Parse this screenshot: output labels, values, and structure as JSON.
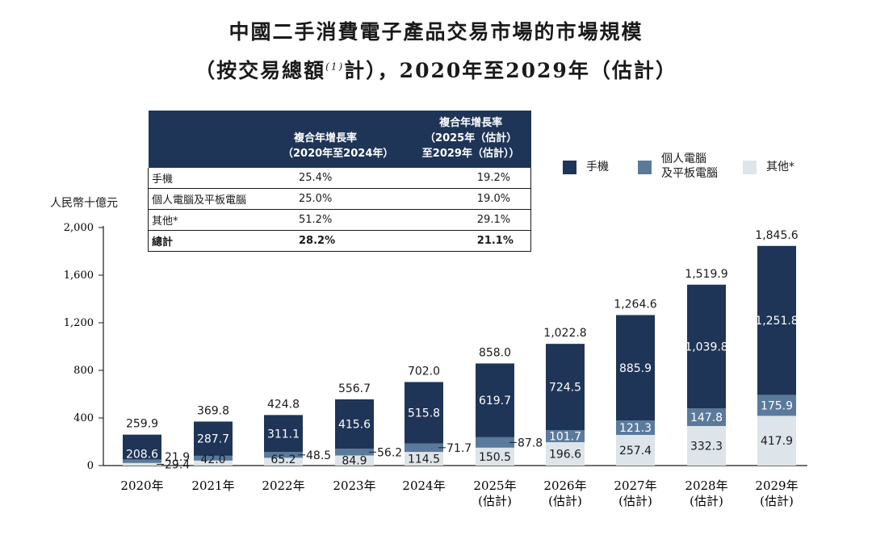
{
  "title_line1": "中國二手消費電子產品交易市場的市場規模",
  "title_line2_a": "（按交易總額",
  "title_line2_sup": "(1)",
  "title_line2_b": "計），2020年至2029年（估計）",
  "table": {
    "header_col1_line1": "複合年增長率",
    "header_col1_line2": "（2020年至2024年）",
    "header_col2_line1": "複合年增長率",
    "header_col2_line2": "（2025年（估計）",
    "header_col2_line3": "至2029年（估計））",
    "rows": [
      {
        "label": "手機",
        "v1": "25.4%",
        "v2": "19.2%"
      },
      {
        "label": "個人電腦及平板電腦",
        "v1": "25.0%",
        "v2": "19.0%"
      },
      {
        "label": "其他*",
        "v1": "51.2%",
        "v2": "29.1%"
      },
      {
        "label": "總計",
        "v1": "28.2%",
        "v2": "21.1%"
      }
    ]
  },
  "legend": {
    "phones": "手機",
    "pc_line1": "個人電腦",
    "pc_line2": "及平板電腦",
    "others": "其他*"
  },
  "colors": {
    "phones": "#1f3557",
    "pc": "#5a7a9c",
    "others": "#dde4ea"
  },
  "chart_data": {
    "type": "bar",
    "stacked": true,
    "ylabel": "人民幣十億元",
    "ylim": [
      0,
      2000
    ],
    "yticks": [
      "0",
      "400",
      "800",
      "1,200",
      "1,600",
      "2,000"
    ],
    "categories": [
      {
        "line1": "2020年",
        "line2": ""
      },
      {
        "line1": "2021年",
        "line2": ""
      },
      {
        "line1": "2022年",
        "line2": ""
      },
      {
        "line1": "2023年",
        "line2": ""
      },
      {
        "line1": "2024年",
        "line2": ""
      },
      {
        "line1": "2025年",
        "line2": "(估計)"
      },
      {
        "line1": "2026年",
        "line2": "(估計)"
      },
      {
        "line1": "2027年",
        "line2": "(估計)"
      },
      {
        "line1": "2028年",
        "line2": "(估計)"
      },
      {
        "line1": "2029年",
        "line2": "(估計)"
      }
    ],
    "series": [
      {
        "name": "其他*",
        "values": [
          21.9,
          42.0,
          65.2,
          84.9,
          114.5,
          150.5,
          196.6,
          257.4,
          332.3,
          417.9
        ],
        "labels": [
          "21.9",
          "42.0",
          "65.2",
          "84.9",
          "114.5",
          "150.5",
          "196.6",
          "257.4",
          "332.3",
          "417.9"
        ]
      },
      {
        "name": "個人電腦及平板電腦",
        "values": [
          29.4,
          40.1,
          48.5,
          56.2,
          71.7,
          87.8,
          101.7,
          121.3,
          147.8,
          175.9
        ],
        "labels": [
          "29.4",
          "",
          "48.5",
          "56.2",
          "71.7",
          "87.8",
          "101.7",
          "121.3",
          "147.8",
          "175.9"
        ]
      },
      {
        "name": "手機",
        "values": [
          208.6,
          287.7,
          311.1,
          415.6,
          515.8,
          619.7,
          724.5,
          885.9,
          1039.8,
          1251.8
        ],
        "labels": [
          "208.6",
          "287.7",
          "311.1",
          "415.6",
          "515.8",
          "619.7",
          "724.5",
          "885.9",
          "1,039.8",
          "1,251.8"
        ]
      }
    ],
    "totals": [
      259.9,
      369.8,
      424.8,
      556.7,
      702.0,
      858.0,
      1022.8,
      1264.6,
      1519.9,
      1845.6
    ],
    "total_labels": [
      "259.9",
      "369.8",
      "424.8",
      "556.7",
      "702.0",
      "858.0",
      "1,022.8",
      "1,264.6",
      "1,519.9",
      "1,845.6"
    ]
  }
}
